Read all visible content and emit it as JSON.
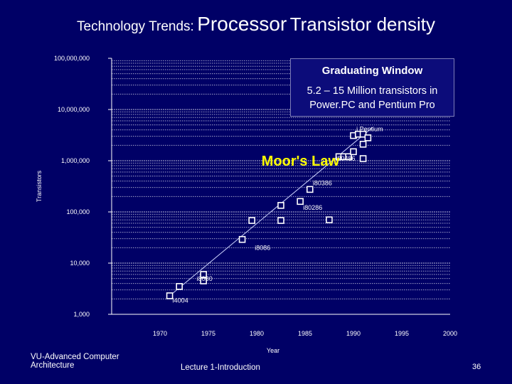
{
  "slide": {
    "title_part1": "Technology Trends:",
    "title_part2": "Processor",
    "title_part3": "Transistor density",
    "footer_left": [
      "VU-Advanced Computer",
      "Architecture"
    ],
    "footer_center": "Lecture 1-Introduction",
    "page_number": "36"
  },
  "callout": {
    "heading": "Graduating Window",
    "body": [
      "5.2 – 15 Million transistors in",
      "Power.PC and Pentium Pro"
    ]
  },
  "colors": {
    "background": "#000066",
    "grid": "#b9b9d6",
    "points": "#ffffff",
    "title": "#ffffff"
  },
  "chart_data": {
    "type": "scatter",
    "title": "",
    "xlabel": "Year",
    "ylabel": "Transistors",
    "y_scale": "log",
    "xlim": [
      1965,
      2000
    ],
    "ylim": [
      1000,
      100000000
    ],
    "x_ticks": [
      "1970",
      "1975",
      "1980",
      "1985",
      "1990",
      "1995",
      "2000"
    ],
    "y_ticks": [
      "1,000",
      "10,000",
      "100,000",
      "1,000,000",
      "10,000,000",
      "100,000,000"
    ],
    "grid": true,
    "points": [
      {
        "x": 1971.0,
        "y": 2300
      },
      {
        "x": 1972.0,
        "y": 3500
      },
      {
        "x": 1974.5,
        "y": 4500
      },
      {
        "x": 1974.5,
        "y": 6000
      },
      {
        "x": 1978.5,
        "y": 29000
      },
      {
        "x": 1979.5,
        "y": 68000
      },
      {
        "x": 1982.5,
        "y": 68000
      },
      {
        "x": 1982.5,
        "y": 134000
      },
      {
        "x": 1984.5,
        "y": 160000
      },
      {
        "x": 1985.5,
        "y": 275000
      },
      {
        "x": 1987.5,
        "y": 70000
      },
      {
        "x": 1988.5,
        "y": 1200000
      },
      {
        "x": 1989.0,
        "y": 1200000
      },
      {
        "x": 1989.5,
        "y": 1200000
      },
      {
        "x": 1990.0,
        "y": 1500000
      },
      {
        "x": 1990.0,
        "y": 3100000
      },
      {
        "x": 1990.5,
        "y": 3300000
      },
      {
        "x": 1991.0,
        "y": 1100000
      },
      {
        "x": 1991.0,
        "y": 2100000
      },
      {
        "x": 1991.0,
        "y": 3300000
      },
      {
        "x": 1991.5,
        "y": 2800000
      }
    ],
    "trend": [
      {
        "x": 1971,
        "y": 2300
      },
      {
        "x": 1992,
        "y": 4500000
      }
    ],
    "annotations": [
      {
        "text": "i4004",
        "x": 1971.3,
        "y": 1700,
        "size": 9
      },
      {
        "text": "i8080",
        "x": 1973.8,
        "y": 4500,
        "size": 9
      },
      {
        "text": "i8086",
        "x": 1979.8,
        "y": 18000,
        "size": 9
      },
      {
        "text": "i80286",
        "x": 1984.8,
        "y": 110000,
        "size": 9
      },
      {
        "text": "i80386",
        "x": 1985.8,
        "y": 330000,
        "size": 9
      },
      {
        "text": "i80486",
        "x": 1988.2,
        "y": 1000000,
        "size": 9
      },
      {
        "text": "i Pentium",
        "x": 1990.3,
        "y": 3800000,
        "size": 9
      },
      {
        "text": "Moor's Law",
        "x": 1980.5,
        "y": 800000,
        "size": 20
      }
    ]
  }
}
